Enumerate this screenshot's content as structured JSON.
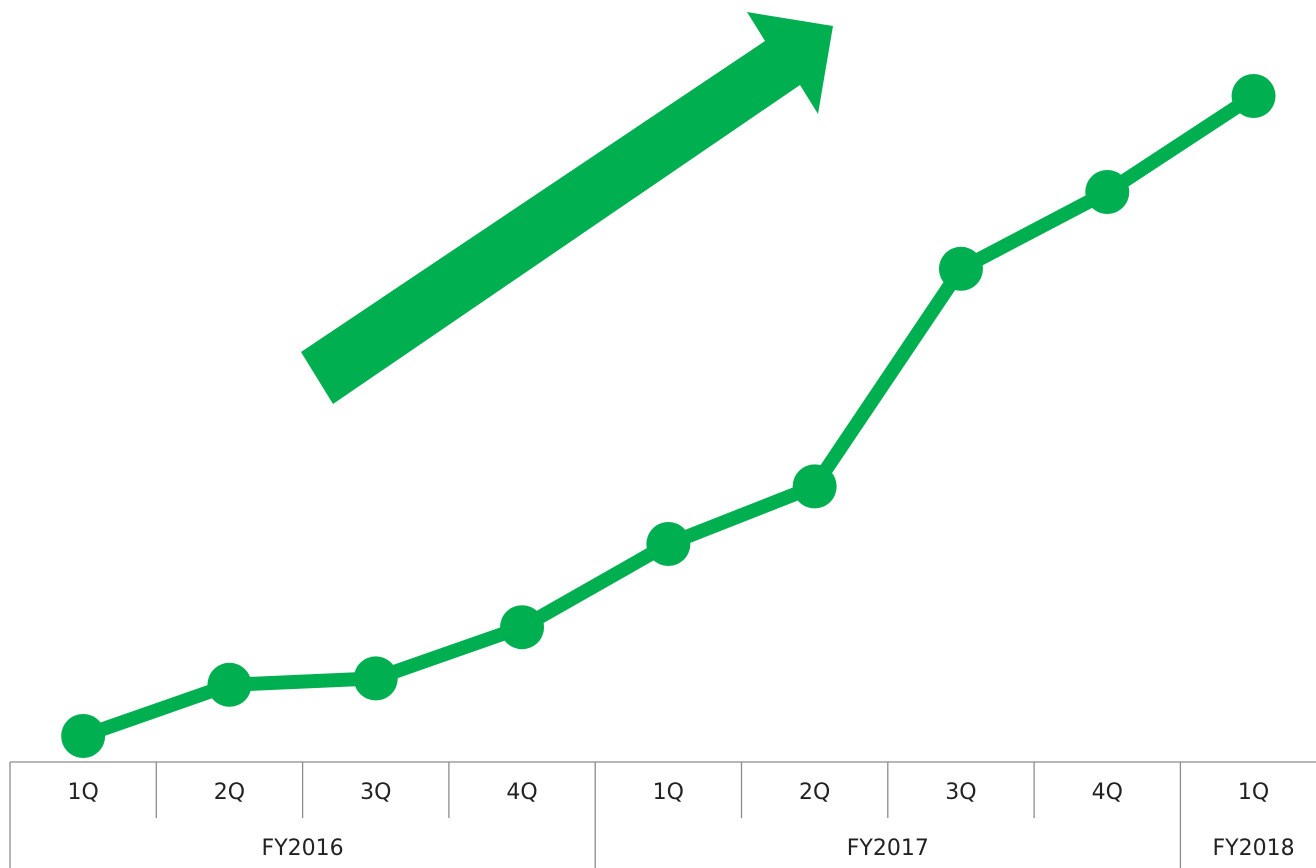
{
  "chart_data": {
    "type": "line",
    "title": "",
    "xlabel": "",
    "ylabel": "",
    "x": [
      {
        "quarter": "1Q",
        "year": "FY2016"
      },
      {
        "quarter": "2Q",
        "year": "FY2016"
      },
      {
        "quarter": "3Q",
        "year": "FY2016"
      },
      {
        "quarter": "4Q",
        "year": "FY2016"
      },
      {
        "quarter": "1Q",
        "year": "FY2017"
      },
      {
        "quarter": "2Q",
        "year": "FY2017"
      },
      {
        "quarter": "3Q",
        "year": "FY2017"
      },
      {
        "quarter": "4Q",
        "year": "FY2017"
      },
      {
        "quarter": "1Q",
        "year": "FY2018"
      }
    ],
    "groups": [
      {
        "label": "FY2016",
        "count": 4
      },
      {
        "label": "FY2017",
        "count": 4
      },
      {
        "label": "FY2018",
        "count": 1
      }
    ],
    "series": [
      {
        "values": [
          0,
          8,
          9,
          17,
          30,
          39,
          73,
          85,
          100
        ]
      }
    ],
    "ylim": [
      0,
      100
    ],
    "y_axis_visible": false,
    "grid": false,
    "legend": "none",
    "annotation": "upward-trend-arrow",
    "colors": {
      "line": "#00af50",
      "arrow": "#00af50",
      "axis": "#8c8c8c",
      "text": "#222222"
    }
  }
}
